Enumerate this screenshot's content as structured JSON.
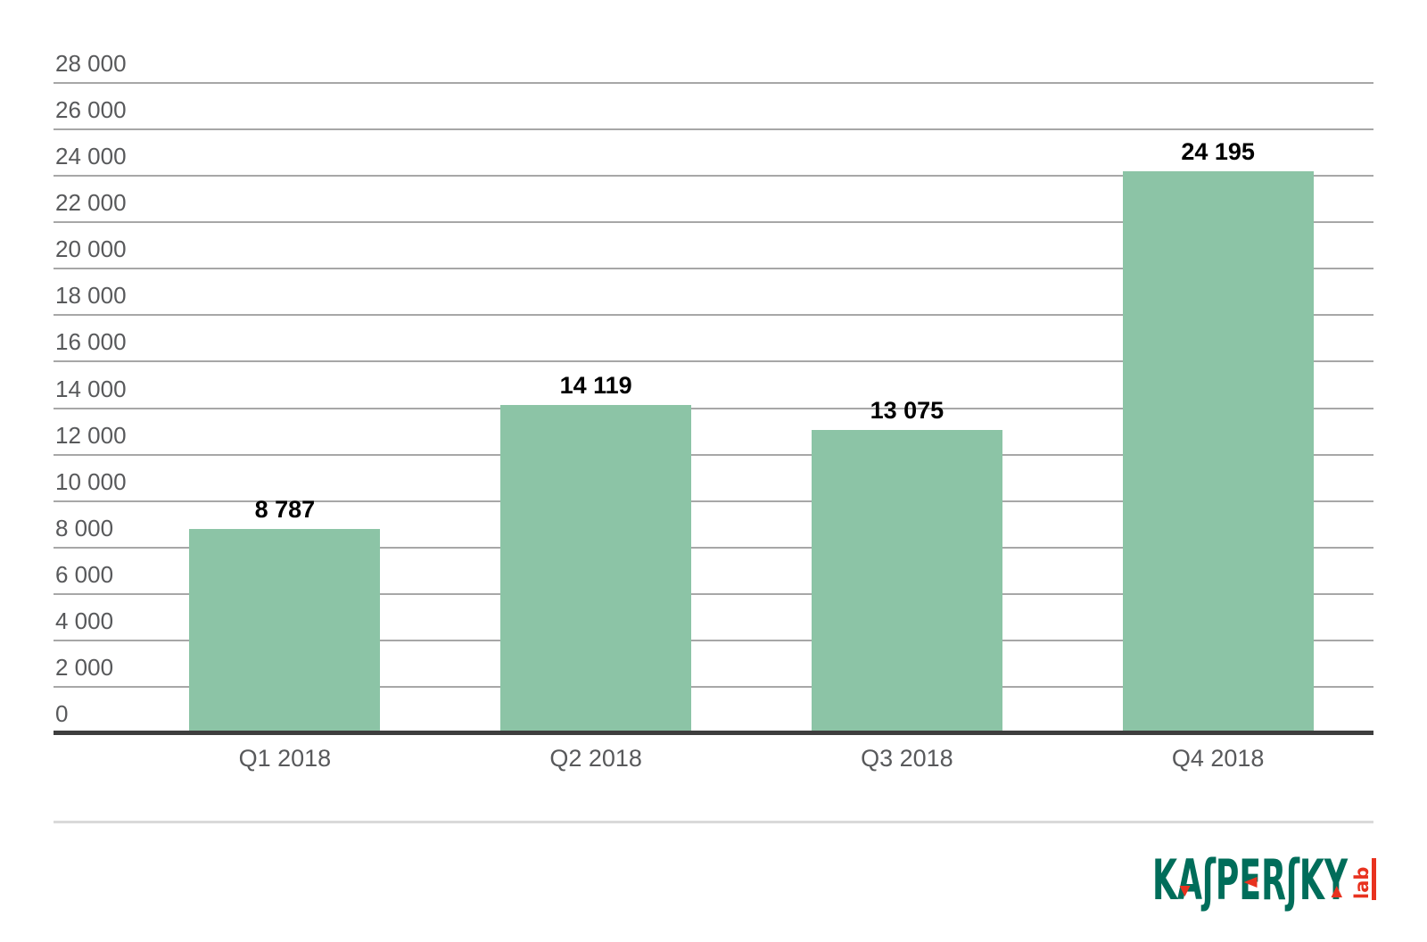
{
  "chart_data": {
    "type": "bar",
    "title": "",
    "xlabel": "",
    "ylabel": "",
    "categories": [
      "Q1 2018",
      "Q2 2018",
      "Q3 2018",
      "Q4 2018"
    ],
    "values": [
      8787,
      14119,
      13075,
      24195
    ],
    "value_labels": [
      "8 787",
      "14 119",
      "13 075",
      "24 195"
    ],
    "ylim": [
      0,
      28000
    ],
    "ytick_step": 2000,
    "yticks": [
      {
        "value": 0,
        "label": "0"
      },
      {
        "value": 2000,
        "label": "2 000"
      },
      {
        "value": 4000,
        "label": "4 000"
      },
      {
        "value": 6000,
        "label": "6 000"
      },
      {
        "value": 8000,
        "label": "8 000"
      },
      {
        "value": 10000,
        "label": "10 000"
      },
      {
        "value": 12000,
        "label": "12 000"
      },
      {
        "value": 14000,
        "label": "14 000"
      },
      {
        "value": 16000,
        "label": "16 000"
      },
      {
        "value": 18000,
        "label": "18 000"
      },
      {
        "value": 20000,
        "label": "20 000"
      },
      {
        "value": 22000,
        "label": "22 000"
      },
      {
        "value": 24000,
        "label": "24 000"
      },
      {
        "value": 26000,
        "label": "26 000"
      },
      {
        "value": 28000,
        "label": "28 000"
      }
    ],
    "grid": "horizontal",
    "legend": "none",
    "colors": {
      "bar": "#8cc4a6",
      "gridline": "#a7a7a7",
      "baseline": "#3e3e3e",
      "axis_text": "#58595b",
      "value_text": "#000000",
      "divider": "#d9d9d9",
      "background": "#ffffff"
    }
  },
  "footer": {
    "logo": {
      "brand": "KASPERSKY",
      "brand_display": "KAʃPERʃKY",
      "sub": "lab",
      "green": "#006d5a",
      "red": "#e8321f"
    }
  }
}
